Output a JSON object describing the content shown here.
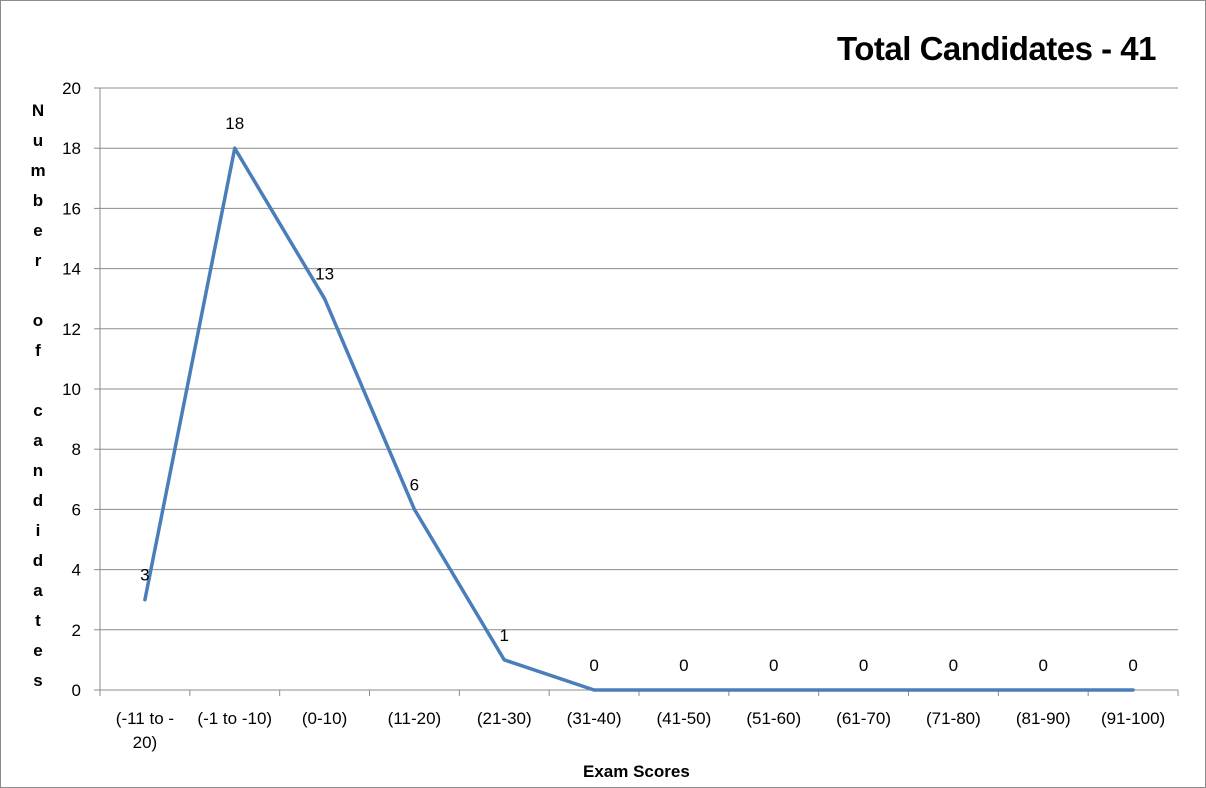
{
  "chart_data": {
    "type": "line",
    "title": "Total Candidates - 41",
    "xlabel": "Exam Scores",
    "ylabel": "Number of candidates",
    "categories": [
      [
        "(-11 to -",
        "20)"
      ],
      [
        "(-1 to -10)"
      ],
      [
        "(0-10)"
      ],
      [
        "(11-20)"
      ],
      [
        "(21-30)"
      ],
      [
        "(31-40)"
      ],
      [
        "(41-50)"
      ],
      [
        "(51-60)"
      ],
      [
        "(61-70)"
      ],
      [
        "(71-80)"
      ],
      [
        "(81-90)"
      ],
      [
        "(91-100)"
      ]
    ],
    "values": [
      3,
      18,
      13,
      6,
      1,
      0,
      0,
      0,
      0,
      0,
      0,
      0
    ],
    "ylim": [
      0,
      20
    ],
    "yticks": [
      0,
      2,
      4,
      6,
      8,
      10,
      12,
      14,
      16,
      18,
      20
    ],
    "grid": true,
    "legend": "none",
    "line_color": "#4a7ebb",
    "data_labels": true
  }
}
